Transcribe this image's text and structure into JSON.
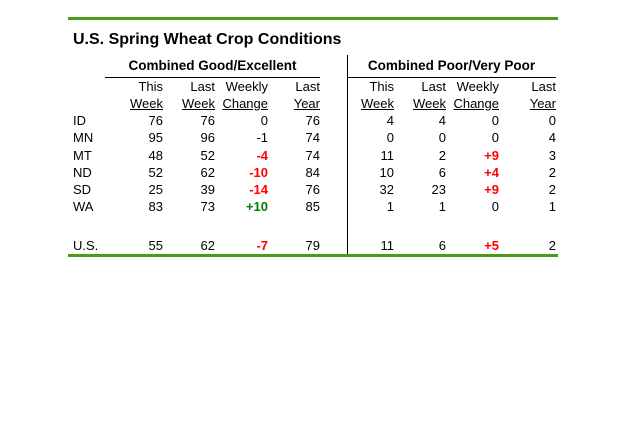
{
  "page": {
    "title": "U.S. Spring Wheat Crop Conditions"
  },
  "colors": {
    "rule_green": "#4A9B18",
    "decline_red": "#FF0000",
    "improve_green": "#008000"
  },
  "table": {
    "sections": [
      {
        "title": "Combined Good/Excellent"
      },
      {
        "title": "Combined Poor/Very Poor"
      }
    ],
    "column_headers": {
      "line1": [
        "This",
        "Last",
        "Weekly",
        "Last"
      ],
      "line2": [
        "Week",
        "Week",
        "Change",
        "Year"
      ]
    },
    "rows": [
      {
        "label": "ID",
        "ge": {
          "tw": "76",
          "lw": "76",
          "ch": "0",
          "tr": "none",
          "ly": "76"
        },
        "pvp": {
          "tw": "4",
          "lw": "4",
          "ch": "0",
          "tr": "none",
          "ly": "0"
        }
      },
      {
        "label": "MN",
        "ge": {
          "tw": "95",
          "lw": "96",
          "ch": "-1",
          "tr": "none",
          "ly": "74"
        },
        "pvp": {
          "tw": "0",
          "lw": "0",
          "ch": "0",
          "tr": "none",
          "ly": "4"
        }
      },
      {
        "label": "MT",
        "ge": {
          "tw": "48",
          "lw": "52",
          "ch": "-4",
          "tr": "bad",
          "ly": "74"
        },
        "pvp": {
          "tw": "11",
          "lw": "2",
          "ch": "+9",
          "tr": "bad",
          "ly": "3"
        }
      },
      {
        "label": "ND",
        "ge": {
          "tw": "52",
          "lw": "62",
          "ch": "-10",
          "tr": "bad",
          "ly": "84"
        },
        "pvp": {
          "tw": "10",
          "lw": "6",
          "ch": "+4",
          "tr": "bad",
          "ly": "2"
        }
      },
      {
        "label": "SD",
        "ge": {
          "tw": "25",
          "lw": "39",
          "ch": "-14",
          "tr": "bad",
          "ly": "76"
        },
        "pvp": {
          "tw": "32",
          "lw": "23",
          "ch": "+9",
          "tr": "bad",
          "ly": "2"
        }
      },
      {
        "label": "WA",
        "ge": {
          "tw": "83",
          "lw": "73",
          "ch": "+10",
          "tr": "good",
          "ly": "85"
        },
        "pvp": {
          "tw": "1",
          "lw": "1",
          "ch": "0",
          "tr": "none",
          "ly": "1"
        }
      },
      {
        "label": "U.S.",
        "ge": {
          "tw": "55",
          "lw": "62",
          "ch": "-7",
          "tr": "bad",
          "ly": "79"
        },
        "pvp": {
          "tw": "11",
          "lw": "6",
          "ch": "+5",
          "tr": "bad",
          "ly": "2"
        }
      }
    ]
  }
}
